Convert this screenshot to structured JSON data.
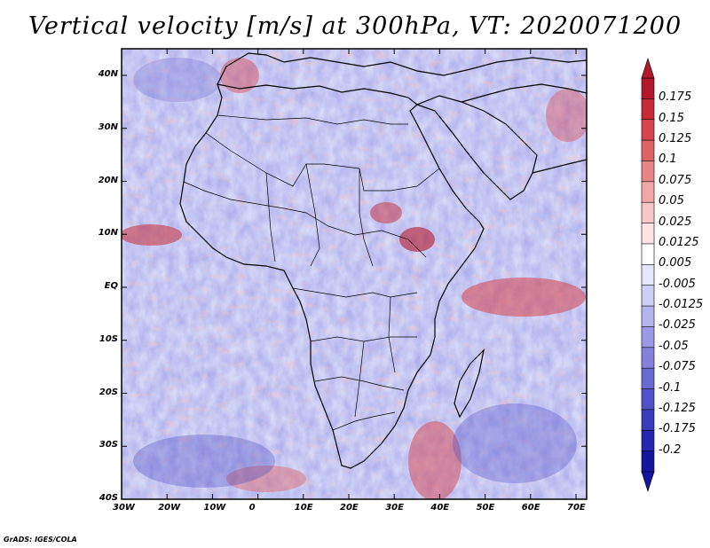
{
  "title": "Vertical velocity [m/s] at 300hPa, VT: 2020071200",
  "credit": "GrADS: IGES/COLA",
  "map": {
    "lat_ticks": [
      "40N",
      "30N",
      "20N",
      "10N",
      "EQ",
      "10S",
      "20S",
      "30S",
      "40S"
    ],
    "lon_ticks": [
      "30W",
      "20W",
      "10W",
      "0",
      "10E",
      "20E",
      "30E",
      "40E",
      "50E",
      "60E",
      "70E"
    ]
  },
  "colorbar": {
    "labels": [
      "0.175",
      "0.15",
      "0.125",
      "0.1",
      "0.075",
      "0.05",
      "0.025",
      "0.0125",
      "0.005",
      "-0.005",
      "-0.0125",
      "-0.025",
      "-0.05",
      "-0.075",
      "-0.1",
      "-0.125",
      "-0.175",
      "-0.2"
    ],
    "colors": [
      "#b2182b",
      "#c62b38",
      "#d6444d",
      "#e06363",
      "#ea8585",
      "#f2a7a7",
      "#f8c8c8",
      "#fde3e3",
      "#ffffff",
      "#e6e6fb",
      "#cdcdf5",
      "#b4b4ee",
      "#9a9ae6",
      "#8282dd",
      "#6a6ad3",
      "#5252c8",
      "#3b3bbd",
      "#2626b0",
      "#1414a0"
    ]
  }
}
